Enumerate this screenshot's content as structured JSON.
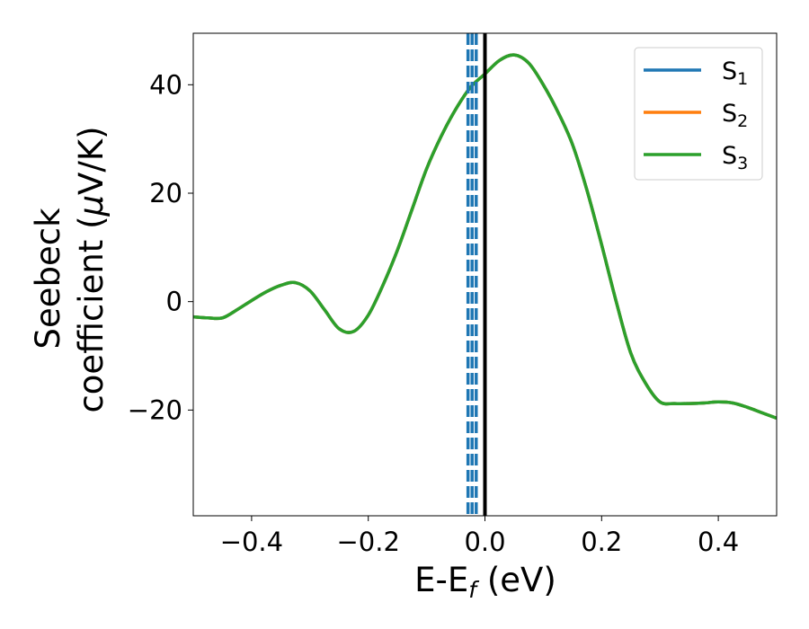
{
  "chart_data": {
    "type": "line",
    "xlabel": {
      "main": "E-E",
      "sub": "f",
      "suffix": " (eV)"
    },
    "ylabel": {
      "line1": "Seebeck",
      "line2_prefix": "coefficient  (",
      "mu": "μ",
      "line2_suffix": "V/K)"
    },
    "xlim": [
      -0.5,
      0.5
    ],
    "ylim": [
      -39.5,
      49.5
    ],
    "xticks": [
      -0.4,
      -0.2,
      0.0,
      0.2,
      0.4
    ],
    "xtick_labels": [
      "−0.4",
      "−0.2",
      "0.0",
      "0.2",
      "0.4"
    ],
    "yticks": [
      -20,
      0,
      20,
      40
    ],
    "ytick_labels": [
      "−20",
      "0",
      "20",
      "40"
    ],
    "grid": false,
    "legend_position": "top-right",
    "legend": [
      {
        "base": "S",
        "sub": "1",
        "color": "#1f77b4"
      },
      {
        "base": "S",
        "sub": "2",
        "color": "#ff7f0e"
      },
      {
        "base": "S",
        "sub": "3",
        "color": "#2ca02c"
      }
    ],
    "series": [
      {
        "name": "S1",
        "color": "#1f77b4",
        "x": [
          -0.5,
          -0.475,
          -0.45,
          -0.425,
          -0.4,
          -0.375,
          -0.35,
          -0.325,
          -0.3,
          -0.275,
          -0.25,
          -0.225,
          -0.2,
          -0.175,
          -0.15,
          -0.125,
          -0.1,
          -0.075,
          -0.05,
          -0.025,
          0.0,
          0.025,
          0.05,
          0.075,
          0.1,
          0.125,
          0.15,
          0.175,
          0.2,
          0.225,
          0.25,
          0.275,
          0.3,
          0.325,
          0.35,
          0.375,
          0.4,
          0.425,
          0.45,
          0.475,
          0.5
        ],
        "y": [
          -2.8,
          -3.0,
          -3.0,
          -1.5,
          0.2,
          1.8,
          3.0,
          3.5,
          2.0,
          -1.5,
          -5.0,
          -5.5,
          -2.5,
          3.0,
          9.5,
          17.0,
          24.5,
          30.5,
          35.5,
          39.5,
          42.0,
          44.5,
          45.5,
          44.0,
          40.0,
          35.0,
          29.0,
          20.5,
          10.5,
          0.0,
          -9.5,
          -15.0,
          -18.5,
          -18.8,
          -18.8,
          -18.7,
          -18.5,
          -18.7,
          -19.5,
          -20.5,
          -21.5
        ]
      },
      {
        "name": "S2",
        "color": "#ff7f0e",
        "x": [
          -0.5,
          -0.475,
          -0.45,
          -0.425,
          -0.4,
          -0.375,
          -0.35,
          -0.325,
          -0.3,
          -0.275,
          -0.25,
          -0.225,
          -0.2,
          -0.175,
          -0.15,
          -0.125,
          -0.1,
          -0.075,
          -0.05,
          -0.025,
          0.0,
          0.025,
          0.05,
          0.075,
          0.1,
          0.125,
          0.15,
          0.175,
          0.2,
          0.225,
          0.25,
          0.275,
          0.3,
          0.325,
          0.35,
          0.375,
          0.4,
          0.425,
          0.45,
          0.475,
          0.5
        ],
        "y": [
          -2.8,
          -3.0,
          -3.0,
          -1.5,
          0.2,
          1.8,
          3.0,
          3.5,
          2.0,
          -1.5,
          -5.0,
          -5.5,
          -2.5,
          3.0,
          9.5,
          17.0,
          24.5,
          30.5,
          35.5,
          39.5,
          42.0,
          44.5,
          45.5,
          44.0,
          40.0,
          35.0,
          29.0,
          20.5,
          10.5,
          0.0,
          -9.5,
          -15.0,
          -18.5,
          -18.8,
          -18.8,
          -18.7,
          -18.5,
          -18.7,
          -19.5,
          -20.5,
          -21.5
        ]
      },
      {
        "name": "S3",
        "color": "#2ca02c",
        "x": [
          -0.5,
          -0.475,
          -0.45,
          -0.425,
          -0.4,
          -0.375,
          -0.35,
          -0.325,
          -0.3,
          -0.275,
          -0.25,
          -0.225,
          -0.2,
          -0.175,
          -0.15,
          -0.125,
          -0.1,
          -0.075,
          -0.05,
          -0.025,
          0.0,
          0.025,
          0.05,
          0.075,
          0.1,
          0.125,
          0.15,
          0.175,
          0.2,
          0.225,
          0.25,
          0.275,
          0.3,
          0.325,
          0.35,
          0.375,
          0.4,
          0.425,
          0.45,
          0.475,
          0.5
        ],
        "y": [
          -2.8,
          -3.0,
          -3.0,
          -1.5,
          0.2,
          1.8,
          3.0,
          3.5,
          2.0,
          -1.5,
          -5.0,
          -5.5,
          -2.5,
          3.0,
          9.5,
          17.0,
          24.5,
          30.5,
          35.5,
          39.5,
          42.0,
          44.5,
          45.5,
          44.0,
          40.0,
          35.0,
          29.0,
          20.5,
          10.5,
          0.0,
          -9.5,
          -15.0,
          -18.5,
          -18.8,
          -18.8,
          -18.7,
          -18.5,
          -18.7,
          -19.5,
          -20.5,
          -21.5
        ]
      }
    ],
    "vlines": [
      {
        "x": -0.029,
        "color": "#1f77b4",
        "style": "dashed"
      },
      {
        "x": -0.022,
        "color": "#1f77b4",
        "style": "dashed"
      },
      {
        "x": -0.015,
        "color": "#1f77b4",
        "style": "dashed"
      },
      {
        "x": 0.0,
        "color": "#000000",
        "style": "solid"
      }
    ]
  }
}
